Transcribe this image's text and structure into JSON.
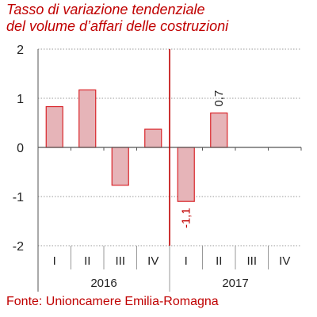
{
  "title_lines": [
    "Tasso di variazione tendenziale",
    "del volume d’affari delle costruzioni"
  ],
  "source": "Fonte: Unioncamere Emilia-Romagna",
  "colors": {
    "title": "#c00000",
    "bar_fill": "#e6b4b8",
    "bar_stroke": "#d9252a",
    "divider": "#c00000",
    "grid": "#999999",
    "axis": "#555555"
  },
  "chart_data": {
    "type": "bar",
    "title": "Tasso di variazione tendenziale del volume d’affari delle costruzioni",
    "categories": [
      "I",
      "II",
      "III",
      "IV",
      "I",
      "II",
      "III",
      "IV"
    ],
    "groups": [
      {
        "label": "2016",
        "categories": [
          "I",
          "II",
          "III",
          "IV"
        ]
      },
      {
        "label": "2017",
        "categories": [
          "I",
          "II",
          "III",
          "IV"
        ]
      }
    ],
    "values": [
      0.83,
      1.17,
      -0.77,
      0.37,
      -1.1,
      0.7,
      null,
      null
    ],
    "data_labels": [
      null,
      null,
      null,
      null,
      "-1,1",
      "0,7",
      null,
      null
    ],
    "ylim": [
      -2,
      2
    ],
    "yticks": [
      2,
      1,
      0,
      -1,
      -2
    ],
    "ytick_labels": [
      "2",
      "1",
      "0",
      "-1",
      "-2"
    ],
    "grid": true,
    "vertical_divider_after_category_index": 3,
    "xlabel": "",
    "ylabel": ""
  }
}
